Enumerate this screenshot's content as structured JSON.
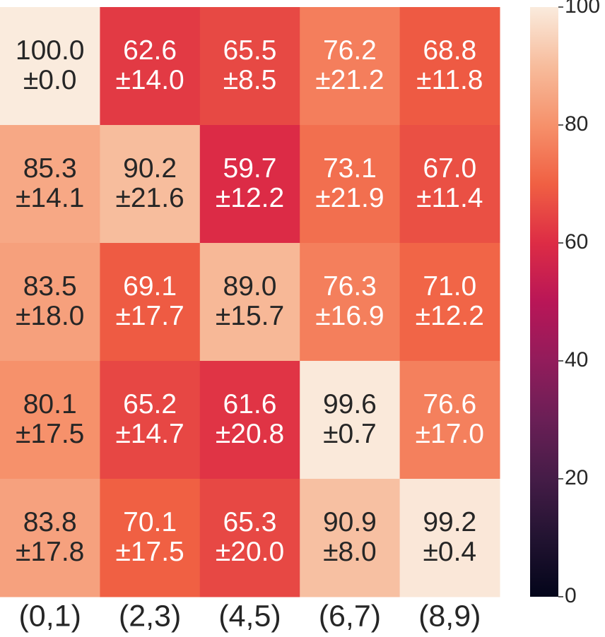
{
  "chart_data": {
    "type": "heatmap",
    "x_categories": [
      "(0,1)",
      "(2,3)",
      "(4,5)",
      "(6,7)",
      "(8,9)"
    ],
    "values": [
      [
        100.0,
        62.6,
        65.5,
        76.2,
        68.8
      ],
      [
        85.3,
        90.2,
        59.7,
        73.1,
        67.0
      ],
      [
        83.5,
        69.1,
        89.0,
        76.3,
        71.0
      ],
      [
        80.1,
        65.2,
        61.6,
        99.6,
        76.6
      ],
      [
        83.8,
        70.1,
        65.3,
        90.9,
        99.2
      ]
    ],
    "value_labels": [
      [
        "100.0",
        "62.6",
        "65.5",
        "76.2",
        "68.8"
      ],
      [
        "85.3",
        "90.2",
        "59.7",
        "73.1",
        "67.0"
      ],
      [
        "83.5",
        "69.1",
        "89.0",
        "76.3",
        "71.0"
      ],
      [
        "80.1",
        "65.2",
        "61.6",
        "99.6",
        "76.6"
      ],
      [
        "83.8",
        "70.1",
        "65.3",
        "90.9",
        "99.2"
      ]
    ],
    "errors": [
      [
        0.0,
        14.0,
        8.5,
        21.2,
        11.8
      ],
      [
        14.1,
        21.6,
        12.2,
        21.9,
        11.4
      ],
      [
        18.0,
        17.7,
        15.7,
        16.9,
        12.2
      ],
      [
        17.5,
        14.7,
        20.8,
        0.7,
        17.0
      ],
      [
        17.8,
        17.5,
        20.0,
        8.0,
        0.4
      ]
    ],
    "error_labels": [
      [
        "±0.0",
        "±14.0",
        "±8.5",
        "±21.2",
        "±11.8"
      ],
      [
        "±14.1",
        "±21.6",
        "±12.2",
        "±21.9",
        "±11.4"
      ],
      [
        "±18.0",
        "±17.7",
        "±15.7",
        "±16.9",
        "±12.2"
      ],
      [
        "±17.5",
        "±14.7",
        "±20.8",
        "±0.7",
        "±17.0"
      ],
      [
        "±17.8",
        "±17.5",
        "±20.0",
        "±8.0",
        "±0.4"
      ]
    ],
    "zlim": [
      0,
      100
    ],
    "zticks": [
      0,
      20,
      40,
      60,
      80,
      100
    ],
    "colorscale": [
      "#03051a",
      "#221331",
      "#451c47",
      "#6a1f56",
      "#921c5b",
      "#b91657",
      "#dd2c45",
      "#f06043",
      "#f6916b",
      "#f7bc9c",
      "#faebdd"
    ]
  }
}
